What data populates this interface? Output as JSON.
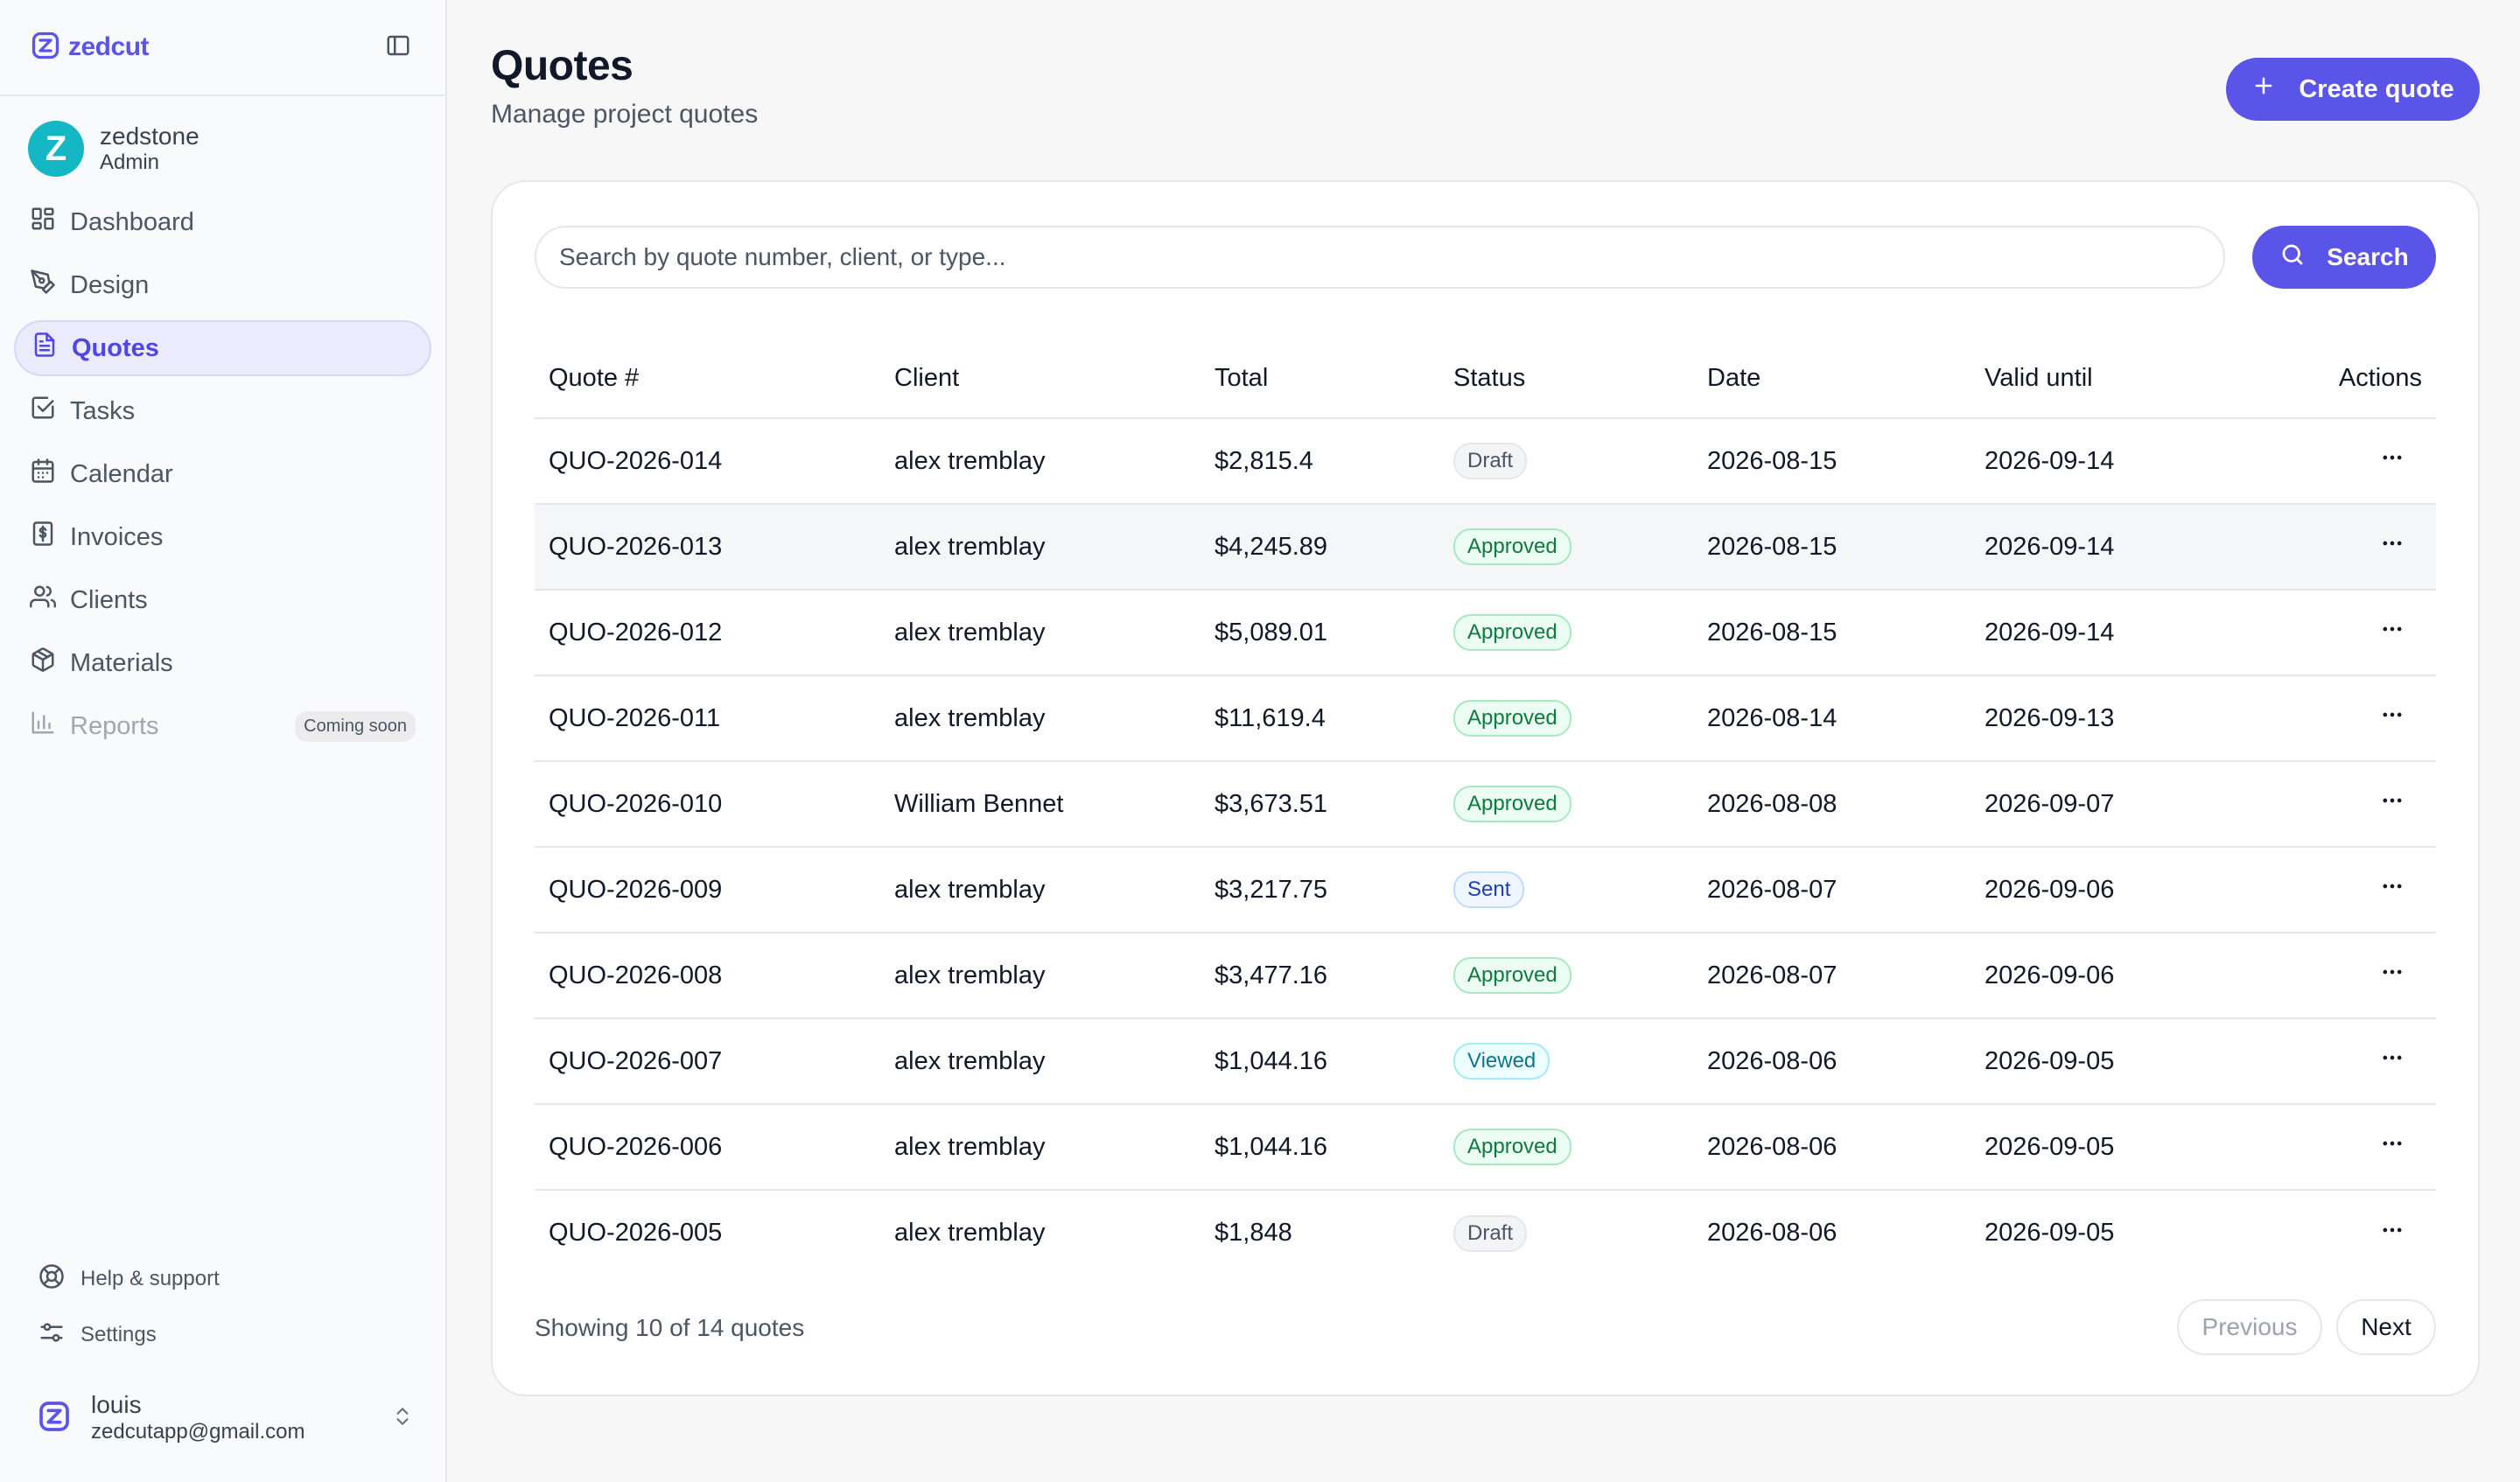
{
  "brand": {
    "name": "zedcut"
  },
  "user": {
    "initial": "Z",
    "name": "zedstone",
    "role": "Admin"
  },
  "nav": [
    {
      "label": "Dashboard",
      "icon": "dashboard-icon"
    },
    {
      "label": "Design",
      "icon": "pen-tool-icon"
    },
    {
      "label": "Quotes",
      "icon": "file-text-icon",
      "active": true
    },
    {
      "label": "Tasks",
      "icon": "checkbox-icon"
    },
    {
      "label": "Calendar",
      "icon": "calendar-icon"
    },
    {
      "label": "Invoices",
      "icon": "dollar-file-icon"
    },
    {
      "label": "Clients",
      "icon": "users-icon"
    },
    {
      "label": "Materials",
      "icon": "box-icon"
    },
    {
      "label": "Reports",
      "icon": "bar-chart-icon",
      "disabled": true,
      "badge": "Coming soon"
    }
  ],
  "bottom_links": {
    "help": "Help & support",
    "settings": "Settings"
  },
  "account": {
    "name": "louis",
    "email": "zedcutapp@gmail.com"
  },
  "page": {
    "title": "Quotes",
    "subtitle": "Manage project quotes",
    "create_label": "Create quote"
  },
  "search": {
    "placeholder": "Search by quote number, client, or type...",
    "button_label": "Search"
  },
  "table": {
    "headers": {
      "quote": "Quote #",
      "client": "Client",
      "total": "Total",
      "status": "Status",
      "date": "Date",
      "valid": "Valid until",
      "actions": "Actions"
    },
    "rows": [
      {
        "quote": "QUO-2026-014",
        "client": "alex tremblay",
        "total": "$2,815.4",
        "status": "Draft",
        "date": "2026-08-15",
        "valid": "2026-09-14"
      },
      {
        "quote": "QUO-2026-013",
        "client": "alex tremblay",
        "total": "$4,245.89",
        "status": "Approved",
        "date": "2026-08-15",
        "valid": "2026-09-14"
      },
      {
        "quote": "QUO-2026-012",
        "client": "alex tremblay",
        "total": "$5,089.01",
        "status": "Approved",
        "date": "2026-08-15",
        "valid": "2026-09-14"
      },
      {
        "quote": "QUO-2026-011",
        "client": "alex tremblay",
        "total": "$11,619.4",
        "status": "Approved",
        "date": "2026-08-14",
        "valid": "2026-09-13"
      },
      {
        "quote": "QUO-2026-010",
        "client": "William Bennet",
        "total": "$3,673.51",
        "status": "Approved",
        "date": "2026-08-08",
        "valid": "2026-09-07"
      },
      {
        "quote": "QUO-2026-009",
        "client": "alex tremblay",
        "total": "$3,217.75",
        "status": "Sent",
        "date": "2026-08-07",
        "valid": "2026-09-06"
      },
      {
        "quote": "QUO-2026-008",
        "client": "alex tremblay",
        "total": "$3,477.16",
        "status": "Approved",
        "date": "2026-08-07",
        "valid": "2026-09-06"
      },
      {
        "quote": "QUO-2026-007",
        "client": "alex tremblay",
        "total": "$1,044.16",
        "status": "Viewed",
        "date": "2026-08-06",
        "valid": "2026-09-05"
      },
      {
        "quote": "QUO-2026-006",
        "client": "alex tremblay",
        "total": "$1,044.16",
        "status": "Approved",
        "date": "2026-08-06",
        "valid": "2026-09-05"
      },
      {
        "quote": "QUO-2026-005",
        "client": "alex tremblay",
        "total": "$1,848",
        "status": "Draft",
        "date": "2026-08-06",
        "valid": "2026-09-05"
      }
    ]
  },
  "pagination": {
    "showing": "Showing 10 of 14 quotes",
    "previous": "Previous",
    "next": "Next"
  },
  "colors": {
    "accent": "#5b54e8",
    "avatar": "#14b8c4"
  }
}
